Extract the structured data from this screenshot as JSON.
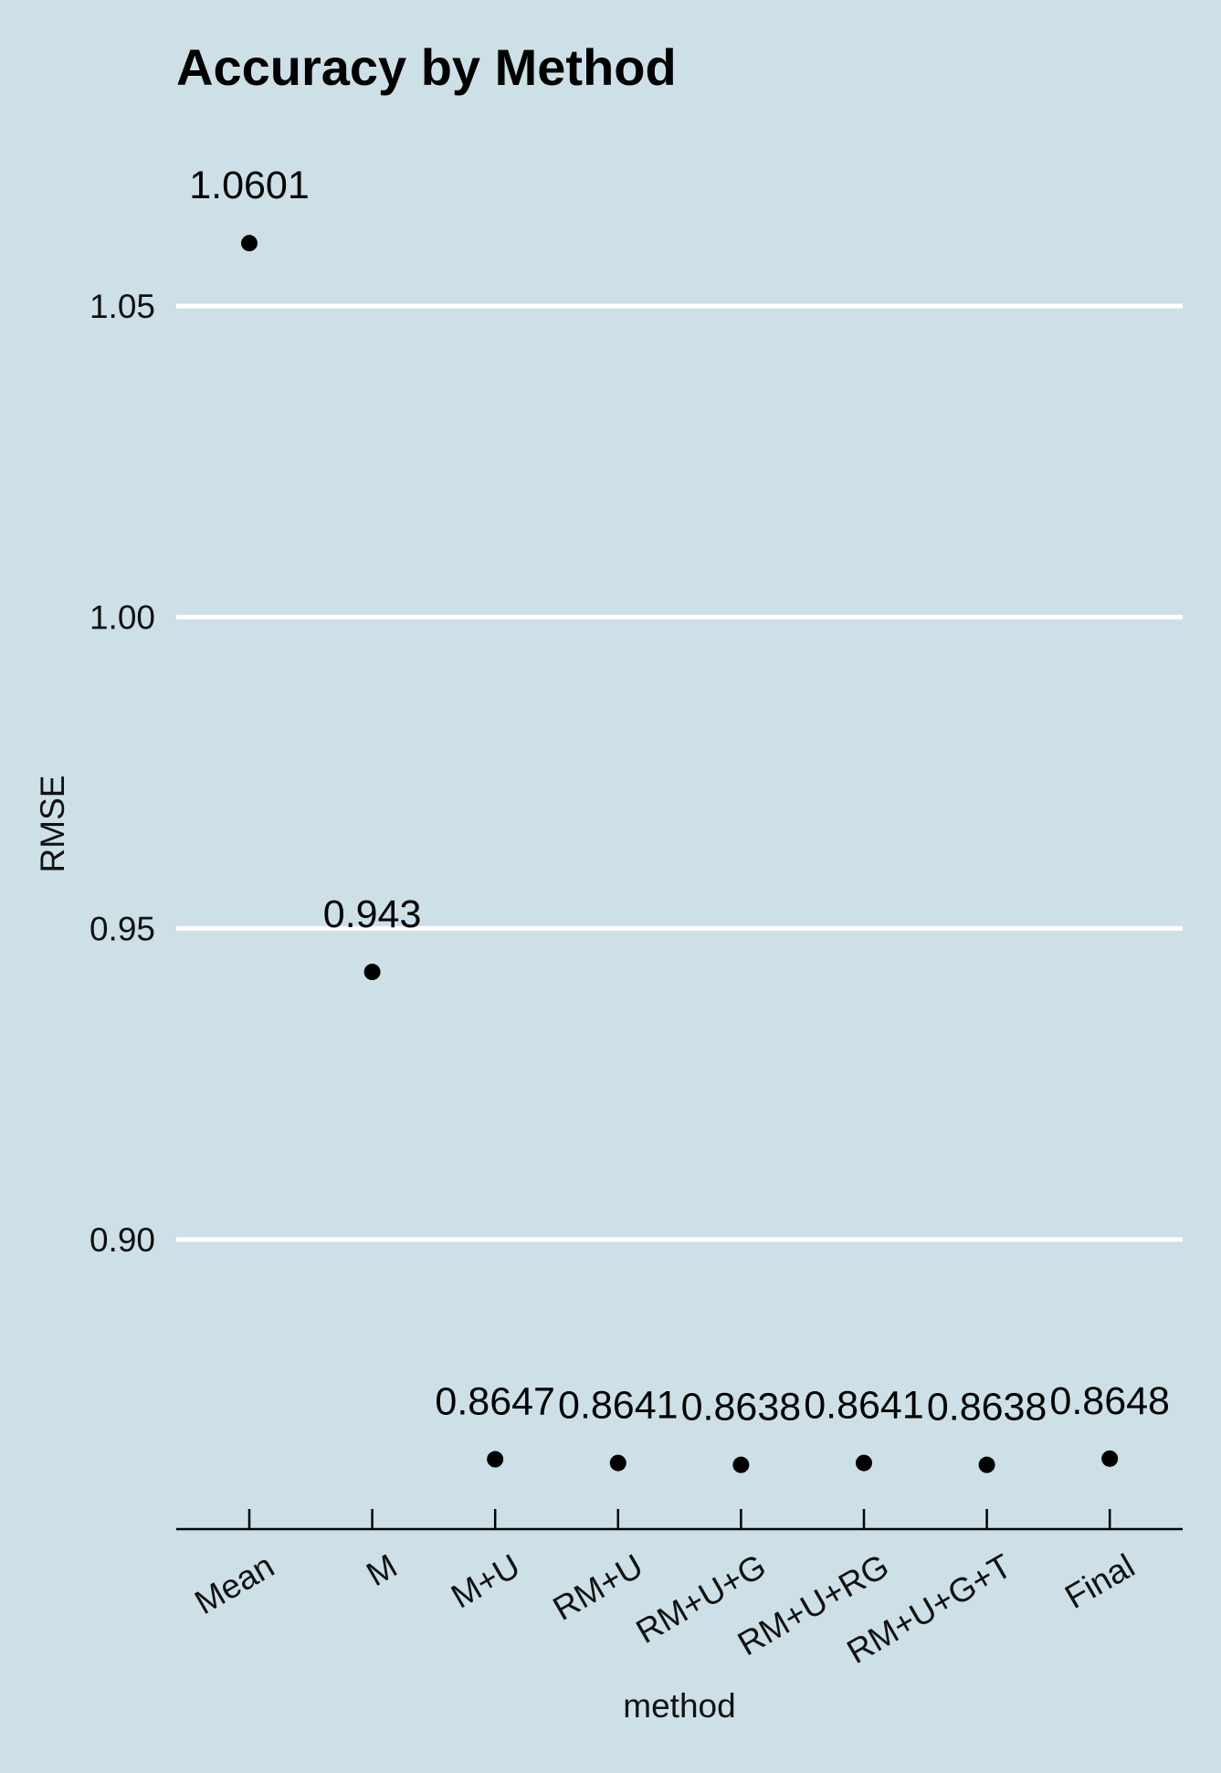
{
  "chart_data": {
    "type": "scatter",
    "title": "Accuracy by Method",
    "xlabel": "method",
    "ylabel": "RMSE",
    "categories": [
      "Mean",
      "M",
      "M+U",
      "RM+U",
      "RM+U+G",
      "RM+U+RG",
      "RM+U+G+T",
      "Final"
    ],
    "values": [
      1.0601,
      0.943,
      0.8647,
      0.8641,
      0.8638,
      0.8641,
      0.8638,
      0.8648
    ],
    "data_labels": [
      "1.0601",
      "0.943",
      "0.8647",
      "0.8641",
      "0.8638",
      "0.8641",
      "0.8638",
      "0.8648"
    ],
    "yticks": [
      "0.90",
      "0.95",
      "1.00",
      "1.05"
    ],
    "ytick_values": [
      0.9,
      0.95,
      1.0,
      1.05
    ],
    "ylim": [
      0.854,
      1.075
    ],
    "grid": "horizontal major lines",
    "legend": "none",
    "colors": {
      "background": "#cde0e7",
      "gridline": "#ffffff",
      "point": "#000000",
      "axis": "#000000"
    }
  }
}
